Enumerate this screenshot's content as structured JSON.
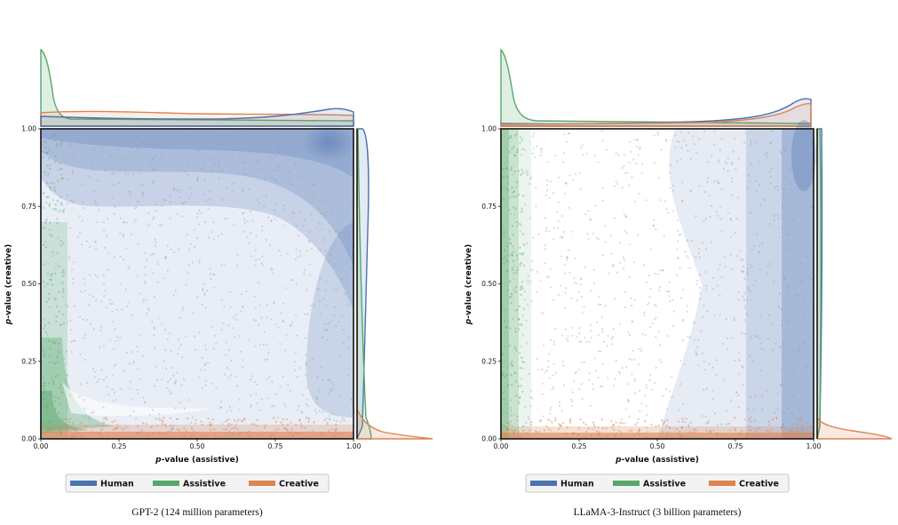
{
  "chart_data": [
    {
      "type": "scatter",
      "subtype": "joint-kde-scatter",
      "caption": "GPT-2 (124 million parameters)",
      "xlabel_italic": "p",
      "xlabel_rest": "-value (assistive)",
      "ylabel_italic": "p",
      "ylabel_rest": "-value (creative)",
      "xlim": [
        0,
        1
      ],
      "ylim": [
        0,
        1
      ],
      "xticks": [
        "0.00",
        "0.25",
        "0.50",
        "0.75",
        "1.00"
      ],
      "yticks": [
        "0.00",
        "0.25",
        "0.50",
        "0.75",
        "1.00"
      ],
      "legend": {
        "placement": "bottom-center",
        "entries": [
          "Human",
          "Assistive",
          "Creative"
        ]
      },
      "series": [
        {
          "name": "Human",
          "color": "#4c72b0",
          "region": "diffuse, concentrated top-right, upper band and right band"
        },
        {
          "name": "Assistive",
          "color": "#55a868",
          "region": "left edge band x<0.1"
        },
        {
          "name": "Creative",
          "color": "#dd8452",
          "region": "bottom edge band y<0.05"
        }
      ]
    },
    {
      "type": "scatter",
      "subtype": "joint-kde-scatter",
      "caption": "LLaMA-3-Instruct (3 billion parameters)",
      "xlabel_italic": "p",
      "xlabel_rest": "-value (assistive)",
      "ylabel_italic": "p",
      "ylabel_rest": "-value (creative)",
      "xlim": [
        0,
        1
      ],
      "ylim": [
        0,
        1
      ],
      "xticks": [
        "0.00",
        "0.25",
        "0.50",
        "0.75",
        "1.00"
      ],
      "yticks": [
        "0.00",
        "0.25",
        "0.50",
        "0.75",
        "1.00"
      ],
      "legend": {
        "placement": "bottom-center",
        "entries": [
          "Human",
          "Assistive",
          "Creative"
        ]
      },
      "series": [
        {
          "name": "Human",
          "color": "#4c72b0",
          "region": "right half, concentrated at x near 1"
        },
        {
          "name": "Assistive",
          "color": "#55a868",
          "region": "left edge band x<0.08"
        },
        {
          "name": "Creative",
          "color": "#dd8452",
          "region": "bottom edge band y<0.04"
        }
      ]
    }
  ]
}
